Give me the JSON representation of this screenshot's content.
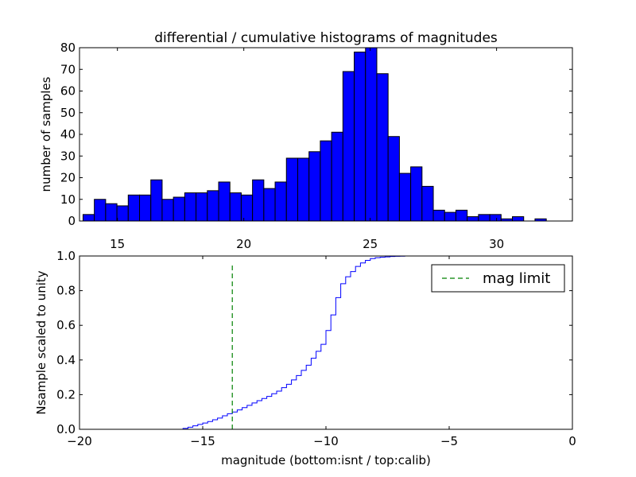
{
  "chart_data": [
    {
      "type": "bar",
      "title": "differential / cumulative histograms of magnitudes",
      "xlabel": "",
      "ylabel": "number of samples",
      "xlim": [
        13.5,
        33.0
      ],
      "ylim": [
        0,
        80
      ],
      "xticks": [
        15,
        20,
        25,
        30
      ],
      "yticks": [
        0,
        10,
        20,
        30,
        40,
        50,
        60,
        70,
        80
      ],
      "bin_start": 13.64,
      "bin_width": 0.447,
      "values": [
        3,
        10,
        8,
        7,
        12,
        12,
        19,
        10,
        11,
        13,
        13,
        14,
        18,
        13,
        12,
        19,
        15,
        18,
        29,
        29,
        32,
        37,
        41,
        69,
        78,
        80,
        68,
        39,
        22,
        25,
        16,
        5,
        4,
        5,
        2,
        3,
        3,
        1,
        2,
        0,
        1
      ],
      "bar_color": "#0000ff"
    },
    {
      "type": "line",
      "style": "step",
      "xlabel": "magnitude (bottom:isnt / top:calib)",
      "ylabel": "Nsample scaled to unity",
      "xlim": [
        -20,
        0
      ],
      "ylim": [
        0.0,
        1.0
      ],
      "xticks": [
        -20,
        -15,
        -10,
        -5,
        0
      ],
      "yticks": [
        0.0,
        0.2,
        0.4,
        0.6,
        0.8,
        1.0
      ],
      "line_color": "#0000ff",
      "x": [
        -20.0,
        -16.0,
        -15.8,
        -15.6,
        -15.4,
        -15.2,
        -15.0,
        -14.8,
        -14.6,
        -14.4,
        -14.2,
        -14.0,
        -13.8,
        -13.6,
        -13.4,
        -13.2,
        -13.0,
        -12.8,
        -12.6,
        -12.4,
        -12.2,
        -12.0,
        -11.8,
        -11.6,
        -11.4,
        -11.2,
        -11.0,
        -10.8,
        -10.6,
        -10.4,
        -10.2,
        -10.0,
        -9.8,
        -9.6,
        -9.4,
        -9.2,
        -9.0,
        -8.8,
        -8.6,
        -8.4,
        -8.2,
        -8.0,
        -7.8,
        -7.6,
        -7.4,
        -7.2,
        -7.0,
        -6.8,
        -6.6,
        -6.4,
        -6.2,
        -6.0,
        0.0
      ],
      "y": [
        0.0,
        0.0,
        0.005,
        0.012,
        0.02,
        0.028,
        0.036,
        0.045,
        0.055,
        0.065,
        0.078,
        0.09,
        0.1,
        0.112,
        0.125,
        0.138,
        0.152,
        0.165,
        0.178,
        0.19,
        0.205,
        0.22,
        0.24,
        0.26,
        0.285,
        0.31,
        0.34,
        0.37,
        0.41,
        0.45,
        0.49,
        0.57,
        0.66,
        0.76,
        0.84,
        0.88,
        0.91,
        0.94,
        0.96,
        0.975,
        0.985,
        0.99,
        0.993,
        0.995,
        0.997,
        0.998,
        0.999,
        1.0,
        1.0,
        1.0,
        1.0,
        1.0,
        1.0
      ],
      "vline": {
        "x": -13.8,
        "label": "mag limit",
        "color": "#008000",
        "style": "dashed"
      },
      "legend": [
        "mag limit"
      ],
      "legend_position": "top-right"
    }
  ]
}
